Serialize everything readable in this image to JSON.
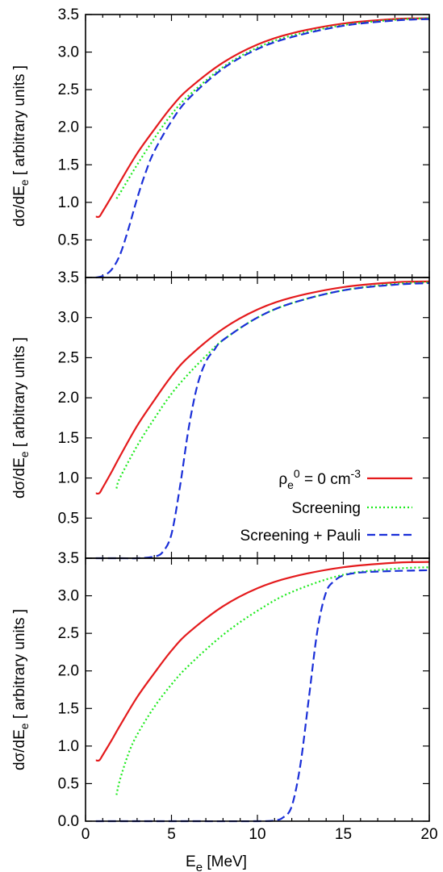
{
  "chart_data": [
    {
      "type": "line",
      "panel": "top",
      "ylabel": "dσ/dE",
      "ylabel_sub": "e",
      "ylabel_rest": " [ arbitrary units ]",
      "xlim": [
        0,
        20
      ],
      "ylim": [
        0,
        3.5
      ],
      "y_ticks": [
        "0.5",
        "1.0",
        "1.5",
        "2.0",
        "2.5",
        "3.0",
        "3.5"
      ],
      "series": [
        {
          "key": "vac",
          "x": [
            0.6,
            0.8,
            1,
            1.5,
            2,
            3,
            4,
            5,
            6,
            8,
            10,
            12,
            15,
            18,
            20
          ],
          "y": [
            0.81,
            0.81,
            0.88,
            1.07,
            1.27,
            1.65,
            1.97,
            2.27,
            2.51,
            2.86,
            3.1,
            3.25,
            3.38,
            3.44,
            3.45
          ]
        },
        {
          "key": "scr",
          "x": [
            1.8,
            2,
            3,
            4,
            5,
            6,
            8,
            10,
            12,
            15,
            18,
            20
          ],
          "y": [
            1.05,
            1.12,
            1.5,
            1.85,
            2.17,
            2.42,
            2.8,
            3.06,
            3.22,
            3.36,
            3.43,
            3.45
          ]
        },
        {
          "key": "pauli",
          "x": [
            0.6,
            1,
            1.5,
            2,
            2.5,
            3,
            3.5,
            4,
            5,
            6,
            8,
            10,
            12,
            15,
            18,
            20
          ],
          "y": [
            0.0,
            0.02,
            0.1,
            0.3,
            0.65,
            1.05,
            1.4,
            1.68,
            2.08,
            2.38,
            2.78,
            3.04,
            3.2,
            3.35,
            3.42,
            3.44
          ]
        }
      ]
    },
    {
      "type": "line",
      "panel": "middle",
      "ylabel": "dσ/dE",
      "ylabel_sub": "e",
      "ylabel_rest": " [ arbitrary units ]",
      "xlim": [
        0,
        20
      ],
      "ylim": [
        0,
        3.5
      ],
      "y_ticks": [
        "0.5",
        "1.0",
        "1.5",
        "2.0",
        "2.5",
        "3.0",
        "3.5"
      ],
      "legend_position": "lower-right",
      "series": [
        {
          "key": "vac",
          "x": [
            0.6,
            0.8,
            1,
            1.5,
            2,
            3,
            4,
            5,
            6,
            8,
            10,
            12,
            15,
            18,
            20
          ],
          "y": [
            0.81,
            0.81,
            0.88,
            1.07,
            1.27,
            1.65,
            1.97,
            2.27,
            2.51,
            2.86,
            3.1,
            3.25,
            3.38,
            3.44,
            3.45
          ]
        },
        {
          "key": "scr",
          "x": [
            1.8,
            2,
            3,
            4,
            5,
            6,
            7,
            8,
            10,
            12,
            15,
            18,
            20
          ],
          "y": [
            0.87,
            1.0,
            1.4,
            1.74,
            2.05,
            2.3,
            2.52,
            2.72,
            3.0,
            3.18,
            3.34,
            3.42,
            3.44
          ]
        },
        {
          "key": "pauli",
          "x": [
            0.6,
            2,
            3,
            4,
            4.5,
            5,
            5.5,
            6,
            6.5,
            7,
            7.5,
            8,
            10,
            12,
            15,
            18,
            20
          ],
          "y": [
            0.0,
            0.0,
            0.0,
            0.02,
            0.08,
            0.3,
            0.9,
            1.62,
            2.15,
            2.45,
            2.6,
            2.72,
            3.0,
            3.18,
            3.34,
            3.41,
            3.43
          ]
        }
      ]
    },
    {
      "type": "line",
      "panel": "bottom",
      "ylabel": "dσ/dE",
      "ylabel_sub": "e",
      "ylabel_rest": " [ arbitrary units ]",
      "xlabel": "E",
      "xlabel_sub": "e",
      "xlabel_rest": " [MeV]",
      "xlim": [
        0,
        20
      ],
      "ylim": [
        0,
        3.5
      ],
      "x_ticks": [
        "0",
        "5",
        "10",
        "15",
        "20"
      ],
      "y_ticks": [
        "0.0",
        "0.5",
        "1.0",
        "1.5",
        "2.0",
        "2.5",
        "3.0",
        "3.5"
      ],
      "series": [
        {
          "key": "vac",
          "x": [
            0.6,
            0.8,
            1,
            1.5,
            2,
            3,
            4,
            5,
            6,
            8,
            10,
            12,
            15,
            18,
            20
          ],
          "y": [
            0.81,
            0.81,
            0.88,
            1.07,
            1.27,
            1.65,
            1.97,
            2.27,
            2.51,
            2.86,
            3.1,
            3.25,
            3.38,
            3.44,
            3.45
          ]
        },
        {
          "key": "scr",
          "x": [
            1.8,
            2,
            2.5,
            3,
            4,
            5,
            6,
            8,
            10,
            12,
            15,
            18,
            20
          ],
          "y": [
            0.35,
            0.55,
            0.9,
            1.15,
            1.52,
            1.82,
            2.07,
            2.48,
            2.8,
            3.05,
            3.28,
            3.36,
            3.38
          ]
        },
        {
          "key": "pauli",
          "x": [
            0.6,
            5,
            10,
            11,
            11.5,
            12,
            12.5,
            13,
            13.5,
            14,
            14.5,
            15,
            16,
            18,
            20
          ],
          "y": [
            0.0,
            0.0,
            0.0,
            0.01,
            0.05,
            0.2,
            0.75,
            1.65,
            2.55,
            3.05,
            3.2,
            3.27,
            3.31,
            3.33,
            3.34
          ]
        }
      ]
    }
  ],
  "legend": {
    "vac_symbol": "ρ",
    "vac_sub": "e",
    "vac_sup": "0",
    "vac_mid": " = 0 cm",
    "vac_sup2": "-3",
    "scr_label": "Screening",
    "pauli_label": "Screening + Pauli"
  },
  "colors": {
    "vac": "#e41a1c",
    "scr": "#1eea1e",
    "pauli": "#1a2fd8"
  }
}
